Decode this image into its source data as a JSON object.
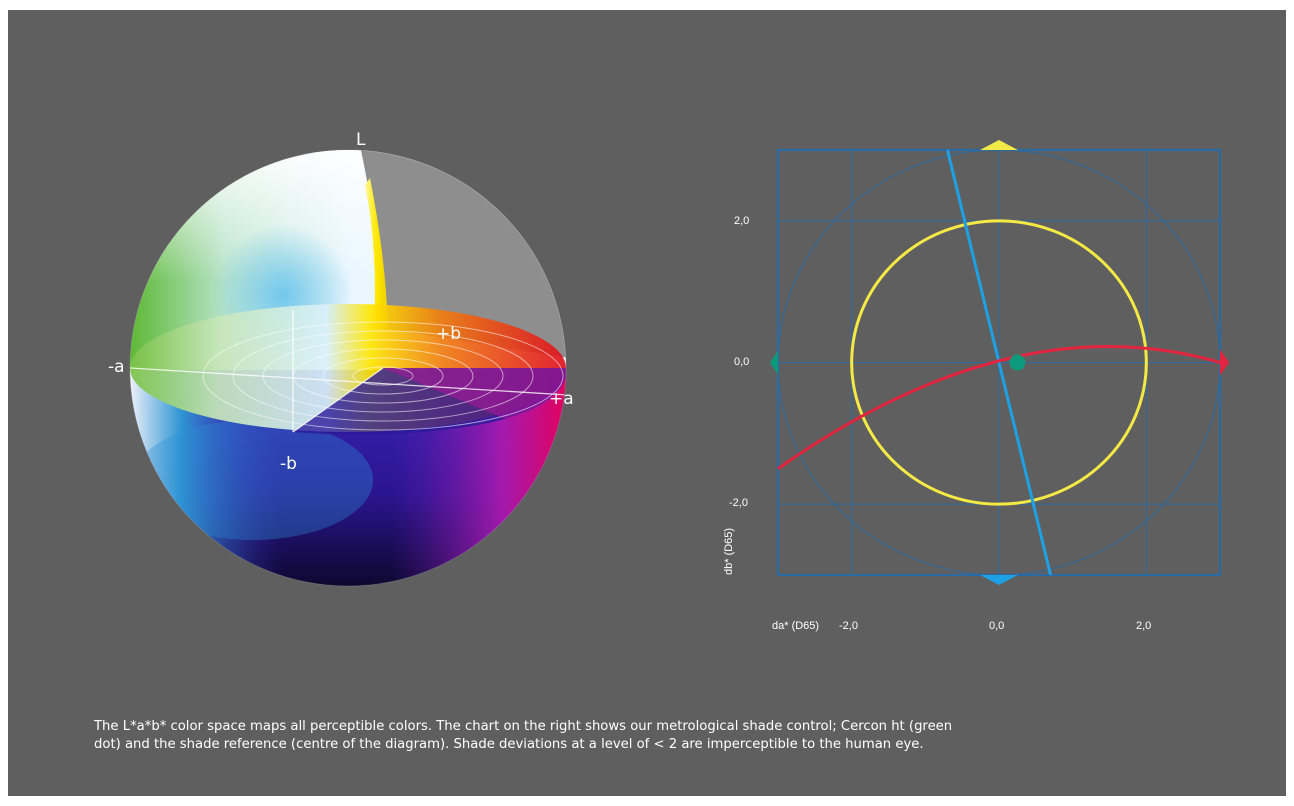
{
  "sphere": {
    "labels": {
      "L": "L",
      "plus_b": "+b",
      "minus_a": "-a",
      "plus_a": "+a",
      "minus_b": "-b"
    }
  },
  "chart": {
    "ylabel": "db* (D65)",
    "xlabel": "da* (D65)",
    "y_ticks": [
      "2,0",
      "0,0",
      "-2,0"
    ],
    "x_ticks": [
      "-2,0",
      "0,0",
      "2,0"
    ],
    "colors": {
      "grid": "#2a6aa2",
      "tolerance_circle": "#f5e945",
      "blue_line": "#1da0e4",
      "red_curve": "#e3253f",
      "green_marker": "#0c9a7d",
      "yellow_marker": "#f5e945",
      "blue_marker": "#1da0e4",
      "red_marker": "#e3253f"
    }
  },
  "caption": {
    "line1": "The L*a*b* color space maps all perceptible colors. The chart on the right shows our metrological shade control; Cercon ht (green",
    "line2": "dot) and the shade reference (centre of the diagram). Shade deviations at a level of < 2 are imperceptible to the human eye."
  },
  "chart_data": {
    "type": "scatter",
    "xlabel": "da* (D65)",
    "ylabel": "db* (D65)",
    "xlim": [
      -3,
      3
    ],
    "ylim": [
      -3,
      3
    ],
    "x_ticks": [
      -2.0,
      0.0,
      2.0
    ],
    "y_ticks": [
      -2.0,
      0.0,
      2.0
    ],
    "grid": true,
    "series": [
      {
        "points": [
          [
            0.25,
            0.0
          ]
        ],
        "color": "#0c9a7d"
      }
    ],
    "reference_point": [
      0,
      0
    ],
    "tolerance_radius": 2.0
  }
}
